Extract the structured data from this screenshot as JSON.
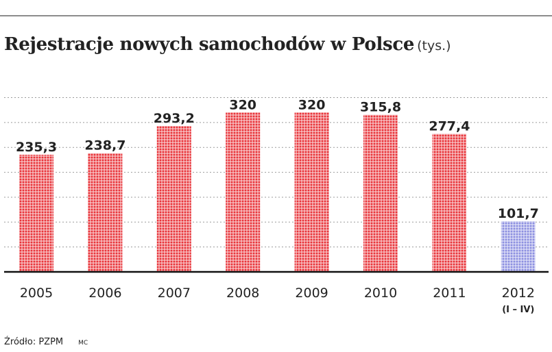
{
  "title": "Rejestracje nowych samochodów w Polsce",
  "unit": "(tys.)",
  "source": "Źródło: PZPM",
  "author": "MC",
  "colors": {
    "bar": "#e8343a",
    "bar_highlight": "#8c8fe0",
    "grid": "#9a9a9a",
    "text": "#222222"
  },
  "chart_data": {
    "type": "bar",
    "categories": [
      "2005",
      "2006",
      "2007",
      "2008",
      "2009",
      "2010",
      "2011",
      "2012"
    ],
    "sublabels": [
      "",
      "",
      "",
      "",
      "",
      "",
      "",
      "(I – IV)"
    ],
    "values": [
      235.3,
      238.7,
      293.2,
      320,
      320,
      315.8,
      277.4,
      101.7
    ],
    "value_labels": [
      "235,3",
      "238,7",
      "293,2",
      "320",
      "320",
      "315,8",
      "277,4",
      "101,7"
    ],
    "highlight_index": 7,
    "ylim": [
      0,
      350
    ],
    "grid": true,
    "xlabel": "",
    "ylabel": ""
  }
}
